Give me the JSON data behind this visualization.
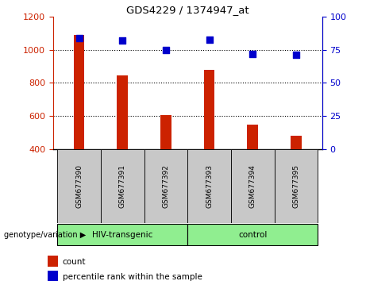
{
  "title": "GDS4229 / 1374947_at",
  "samples": [
    "GSM677390",
    "GSM677391",
    "GSM677392",
    "GSM677393",
    "GSM677394",
    "GSM677395"
  ],
  "count_values": [
    1090,
    845,
    603,
    878,
    548,
    478
  ],
  "percentile_values": [
    84,
    82,
    75,
    83,
    72,
    71
  ],
  "groups": [
    {
      "label": "HIV-transgenic",
      "start": 0,
      "end": 2
    },
    {
      "label": "control",
      "start": 3,
      "end": 5
    }
  ],
  "ylim_left": [
    400,
    1200
  ],
  "ylim_right": [
    0,
    100
  ],
  "bar_color": "#CC2200",
  "dot_color": "#0000CC",
  "left_tick_color": "#CC2200",
  "right_tick_color": "#0000CC",
  "left_ticks": [
    400,
    600,
    800,
    1000,
    1200
  ],
  "right_ticks": [
    0,
    25,
    50,
    75,
    100
  ],
  "grid_lines": [
    600,
    800,
    1000
  ],
  "legend_count": "count",
  "legend_percentile": "percentile rank within the sample",
  "bar_width": 0.25,
  "dot_size": 35,
  "background_label": "#C8C8C8",
  "background_group": "#90EE90"
}
